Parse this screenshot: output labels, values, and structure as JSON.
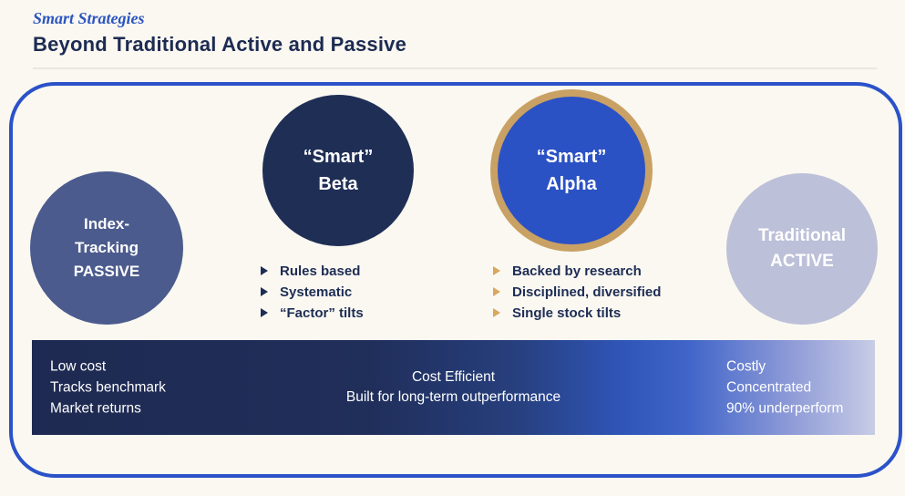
{
  "header": {
    "eyebrow": "Smart Strategies",
    "title": "Beyond Traditional Active and Passive"
  },
  "circles": {
    "passive": {
      "lines": [
        "Index-",
        "Tracking",
        "PASSIVE"
      ]
    },
    "beta": {
      "lines": [
        "“Smart”",
        "Beta"
      ]
    },
    "alpha": {
      "lines": [
        "“Smart”",
        "Alpha"
      ]
    },
    "active": {
      "lines": [
        "Traditional",
        "ACTIVE"
      ]
    }
  },
  "bullets": {
    "beta": [
      "Rules based",
      "Systematic",
      "“Factor” tilts"
    ],
    "alpha": [
      "Backed by research",
      "Disciplined, diversified",
      "Single stock tilts"
    ]
  },
  "bar": {
    "left": [
      "Low cost",
      "Tracks benchmark",
      "Market returns"
    ],
    "center": [
      "Cost Efficient",
      "Built for long-term outperformance"
    ],
    "right": [
      "Costly",
      "Concentrated",
      "90% underperform"
    ]
  },
  "colors": {
    "background": "#faf8f1",
    "frame_border": "#2b52c8",
    "eyebrow_blue": "#2c55c0",
    "heading_navy": "#1d2b52",
    "passive_circle": "#4b5b8d",
    "beta_circle": "#1f2e55",
    "alpha_circle": "#2b52c4",
    "alpha_gold_ring": "#c9a164",
    "alpha_bullet_gold": "#d9a75d",
    "active_circle": "#bcc0d8",
    "bar_gradient_start": "#1e2a51",
    "bar_gradient_bright": "#4165c9",
    "bar_gradient_end": "#c8cce6"
  }
}
